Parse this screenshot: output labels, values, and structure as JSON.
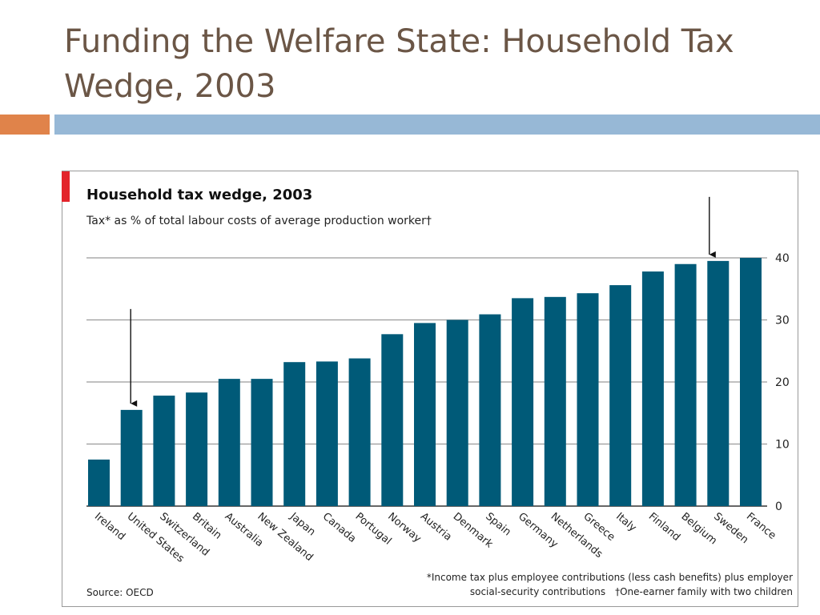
{
  "slide": {
    "title": "Funding the Welfare State: Household Tax Wedge, 2003"
  },
  "colors": {
    "title_text": "#6b5646",
    "accent_orange": "#e0834a",
    "accent_blue": "#97b8d6",
    "bar_fill": "#005a78",
    "red_tab": "#e3242b"
  },
  "chart_data": {
    "type": "bar",
    "title": "Household tax wedge, 2003",
    "subtitle": "Tax* as % of total labour costs of average production worker†",
    "categories": [
      "Ireland",
      "United States",
      "Switzerland",
      "Britain",
      "Australia",
      "New Zealand",
      "Japan",
      "Canada",
      "Portugal",
      "Norway",
      "Austria",
      "Denmark",
      "Spain",
      "Germany",
      "Netherlands",
      "Greece",
      "Italy",
      "Finland",
      "Belgium",
      "Sweden",
      "France"
    ],
    "values": [
      7.5,
      15.5,
      17.8,
      18.3,
      20.5,
      20.5,
      23.2,
      23.3,
      23.8,
      27.7,
      29.5,
      30.0,
      30.9,
      33.5,
      33.7,
      34.3,
      35.6,
      37.8,
      39.0,
      39.5,
      40.0
    ],
    "ylim": [
      0,
      40
    ],
    "yticks": [
      0,
      10,
      20,
      30,
      40
    ],
    "y_axis_position": "right",
    "grid": true,
    "arrows": [
      {
        "category": "United States",
        "direction": "down"
      },
      {
        "category": "Sweden",
        "direction": "down"
      }
    ],
    "source": "Source: OECD",
    "footnote_line1": "*Income tax plus employee contributions (less cash benefits) plus employer",
    "footnote_line2a": "social-security contributions",
    "footnote_line2b": "†One-earner family with two children"
  }
}
